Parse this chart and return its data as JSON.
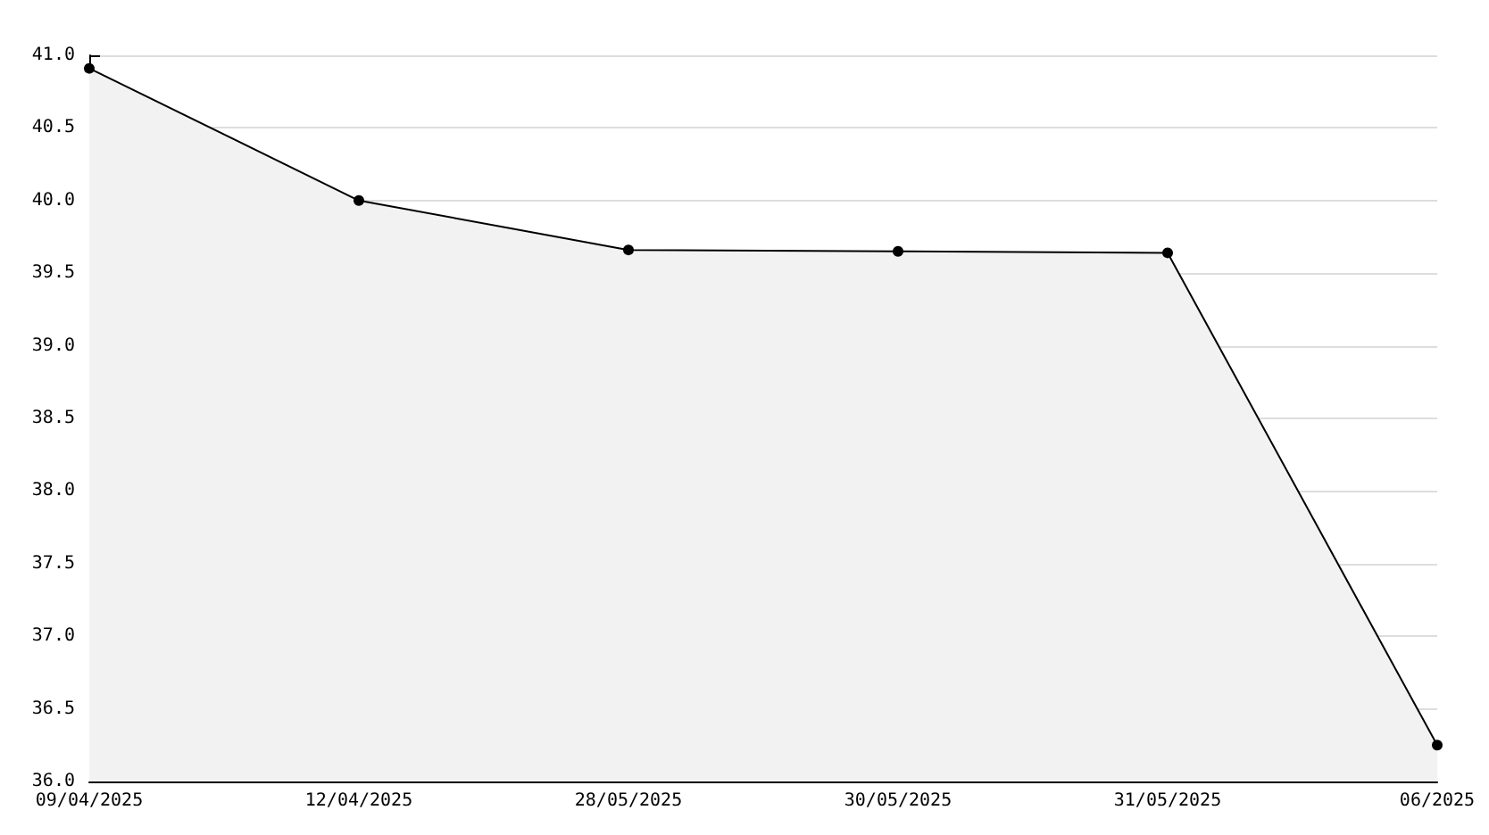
{
  "chart_data": {
    "type": "area",
    "categories": [
      "09/04/2025",
      "12/04/2025",
      "28/05/2025",
      "30/05/2025",
      "31/05/2025",
      "06/2025"
    ],
    "series": [
      {
        "color": "#000000",
        "values": [
          40.91,
          40.0,
          39.66,
          39.65,
          39.64,
          36.25
        ]
      }
    ],
    "ylim": [
      36,
      41
    ],
    "yticks": [
      {
        "value": 36,
        "label": "36.0"
      },
      {
        "value": 36.5,
        "label": "36.5"
      },
      {
        "value": 37,
        "label": "37.0"
      },
      {
        "value": 37.5,
        "label": "37.5"
      },
      {
        "value": 38,
        "label": "38.0"
      },
      {
        "value": 38.5,
        "label": "38.5"
      },
      {
        "value": 39,
        "label": "39.0"
      },
      {
        "value": 39.5,
        "label": "39.5"
      },
      {
        "value": 40,
        "label": "40.0"
      },
      {
        "value": 40.5,
        "label": "40.5"
      },
      {
        "value": 41,
        "label": "41.0"
      }
    ],
    "grid": "y",
    "marker": "circle",
    "line_style": "solid"
  }
}
